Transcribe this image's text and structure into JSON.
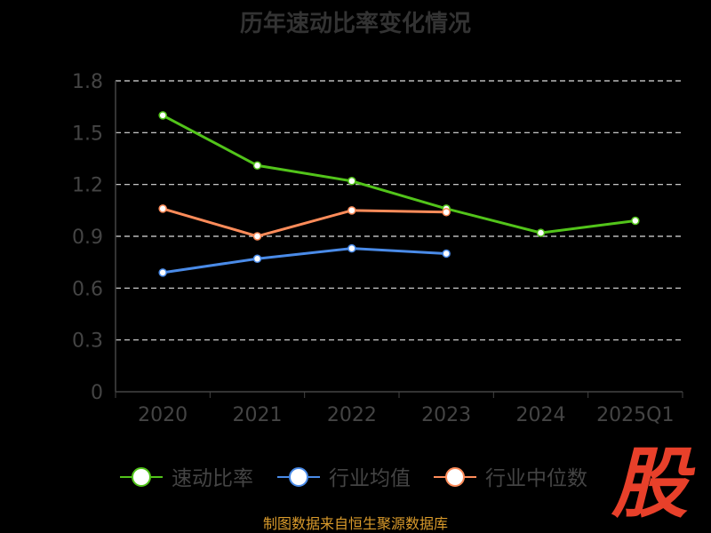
{
  "chart_data": {
    "type": "line",
    "title": "历年速动比率变化情况",
    "categories": [
      "2020",
      "2021",
      "2022",
      "2023",
      "2024",
      "2025Q1"
    ],
    "ylim": [
      0,
      1.8
    ],
    "yticks": [
      "0",
      "0.3",
      "0.6",
      "0.9",
      "1.2",
      "1.5",
      "1.8"
    ],
    "grid": true,
    "legend_placement": "bottom",
    "series": [
      {
        "name": "速动比率",
        "color": "#52c41a",
        "values": [
          1.6,
          1.31,
          1.22,
          1.06,
          0.92,
          0.99
        ]
      },
      {
        "name": "行业均值",
        "color": "#4a8be8",
        "values": [
          0.69,
          0.77,
          0.83,
          0.8,
          null,
          null
        ]
      },
      {
        "name": "行业中位数",
        "color": "#ff8c5a",
        "values": [
          1.06,
          0.9,
          1.05,
          1.04,
          null,
          null
        ]
      }
    ]
  },
  "source": "制图数据来自恒生聚源数据库",
  "logo_text": "股"
}
